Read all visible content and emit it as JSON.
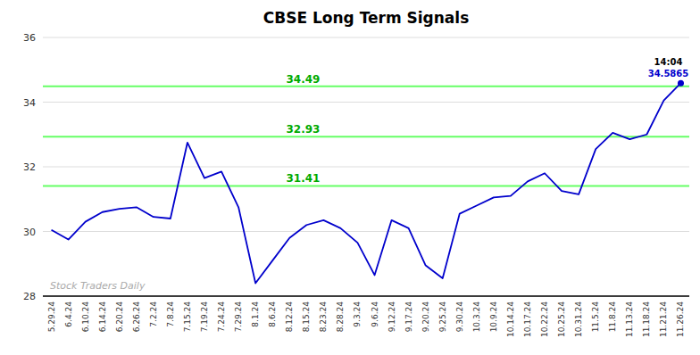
{
  "chart_data": {
    "type": "line",
    "title": "CBSE Long Term Signals",
    "categories": [
      "5.29.24",
      "6.4.24",
      "6.10.24",
      "6.14.24",
      "6.20.24",
      "6.26.24",
      "7.2.24",
      "7.8.24",
      "7.15.24",
      "7.19.24",
      "7.24.24",
      "7.29.24",
      "8.1.24",
      "8.6.24",
      "8.12.24",
      "8.15.24",
      "8.23.24",
      "8.28.24",
      "9.3.24",
      "9.6.24",
      "9.12.24",
      "9.17.24",
      "9.20.24",
      "9.25.24",
      "9.30.24",
      "10.3.24",
      "10.9.24",
      "10.14.24",
      "10.17.24",
      "10.22.24",
      "10.25.24",
      "10.31.24",
      "11.5.24",
      "11.8.24",
      "11.13.24",
      "11.18.24",
      "11.21.24",
      "11.26.24"
    ],
    "values": [
      30.05,
      29.75,
      30.3,
      30.6,
      30.7,
      30.75,
      30.45,
      30.4,
      32.75,
      31.65,
      31.85,
      30.75,
      28.4,
      29.1,
      29.8,
      30.2,
      30.35,
      30.1,
      29.65,
      28.65,
      30.35,
      30.1,
      28.95,
      28.55,
      30.55,
      30.8,
      31.05,
      31.1,
      31.55,
      31.8,
      31.25,
      31.15,
      32.55,
      33.05,
      32.85,
      33.0,
      34.05,
      34.5865
    ],
    "color": "#0000cc",
    "hlines": [
      {
        "value": 31.41,
        "label": "31.41",
        "color": "#66ff66"
      },
      {
        "value": 32.93,
        "label": "32.93",
        "color": "#66ff66"
      },
      {
        "value": 34.49,
        "label": "34.49",
        "color": "#66ff66"
      }
    ],
    "annotations": [
      "Stock Traders Daily",
      "14:04",
      "34.5865"
    ],
    "ylim": [
      28,
      36
    ],
    "yticks": [
      28,
      30,
      32,
      34,
      36
    ],
    "grid": true
  }
}
